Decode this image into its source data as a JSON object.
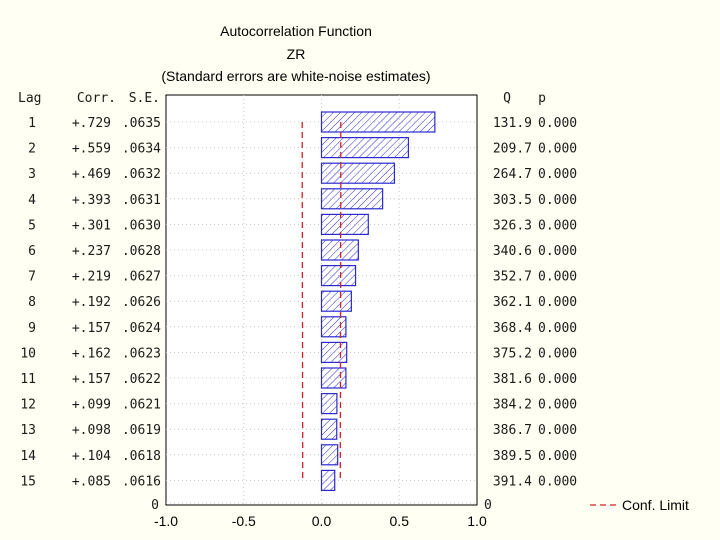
{
  "chart_data": {
    "type": "bar",
    "title": "Autocorrelation Function",
    "subtitle": "ZR",
    "note": "(Standard errors are white-noise estimates)",
    "headers": {
      "lag": "Lag",
      "corr": "Corr.",
      "se": "S.E.",
      "q": "Q",
      "p": "p"
    },
    "rows": [
      {
        "lag": "1",
        "corr_label": "+.729",
        "se": ".0635",
        "q": "131.9",
        "p": "0.000"
      },
      {
        "lag": "2",
        "corr_label": "+.559",
        "se": ".0634",
        "q": "209.7",
        "p": "0.000"
      },
      {
        "lag": "3",
        "corr_label": "+.469",
        "se": ".0632",
        "q": "264.7",
        "p": "0.000"
      },
      {
        "lag": "4",
        "corr_label": "+.393",
        "se": ".0631",
        "q": "303.5",
        "p": "0.000"
      },
      {
        "lag": "5",
        "corr_label": "+.301",
        "se": ".0630",
        "q": "326.3",
        "p": "0.000"
      },
      {
        "lag": "6",
        "corr_label": "+.237",
        "se": ".0628",
        "q": "340.6",
        "p": "0.000"
      },
      {
        "lag": "7",
        "corr_label": "+.219",
        "se": ".0627",
        "q": "352.7",
        "p": "0.000"
      },
      {
        "lag": "8",
        "corr_label": "+.192",
        "se": ".0626",
        "q": "362.1",
        "p": "0.000"
      },
      {
        "lag": "9",
        "corr_label": "+.157",
        "se": ".0624",
        "q": "368.4",
        "p": "0.000"
      },
      {
        "lag": "10",
        "corr_label": "+.162",
        "se": ".0623",
        "q": "375.2",
        "p": "0.000"
      },
      {
        "lag": "11",
        "corr_label": "+.157",
        "se": ".0622",
        "q": "381.6",
        "p": "0.000"
      },
      {
        "lag": "12",
        "corr_label": "+.099",
        "se": ".0621",
        "q": "384.2",
        "p": "0.000"
      },
      {
        "lag": "13",
        "corr_label": "+.098",
        "se": ".0619",
        "q": "386.7",
        "p": "0.000"
      },
      {
        "lag": "14",
        "corr_label": "+.104",
        "se": ".0618",
        "q": "389.5",
        "p": "0.000"
      },
      {
        "lag": "15",
        "corr_label": "+.085",
        "se": ".0616",
        "q": "391.4",
        "p": "0.000"
      }
    ],
    "values": [
      0.729,
      0.559,
      0.469,
      0.393,
      0.301,
      0.237,
      0.219,
      0.192,
      0.157,
      0.162,
      0.157,
      0.099,
      0.098,
      0.104,
      0.085
    ],
    "conf_limit": {
      "label": "Conf. Limit",
      "upper": [
        0.124,
        0.124,
        0.124,
        0.124,
        0.123,
        0.123,
        0.123,
        0.123,
        0.122,
        0.122,
        0.122,
        0.122,
        0.121,
        0.121,
        0.121
      ]
    },
    "xlim": [
      -1.0,
      1.0
    ],
    "xticks": [
      "-1.0",
      "-0.5",
      "0.0",
      "0.5",
      "1.0"
    ],
    "xtick_values": [
      -1.0,
      -0.5,
      0.0,
      0.5,
      1.0
    ],
    "bottom_lag_label": "0",
    "bottom_q_label": "0",
    "grid": true,
    "legend_placement": "bottom-right",
    "colors": {
      "bar": "#2a2ad0",
      "conf": "#d0202a",
      "grid": "#c8c8c8",
      "background": "#fffff3",
      "plot_bg": "#ffffff"
    }
  }
}
